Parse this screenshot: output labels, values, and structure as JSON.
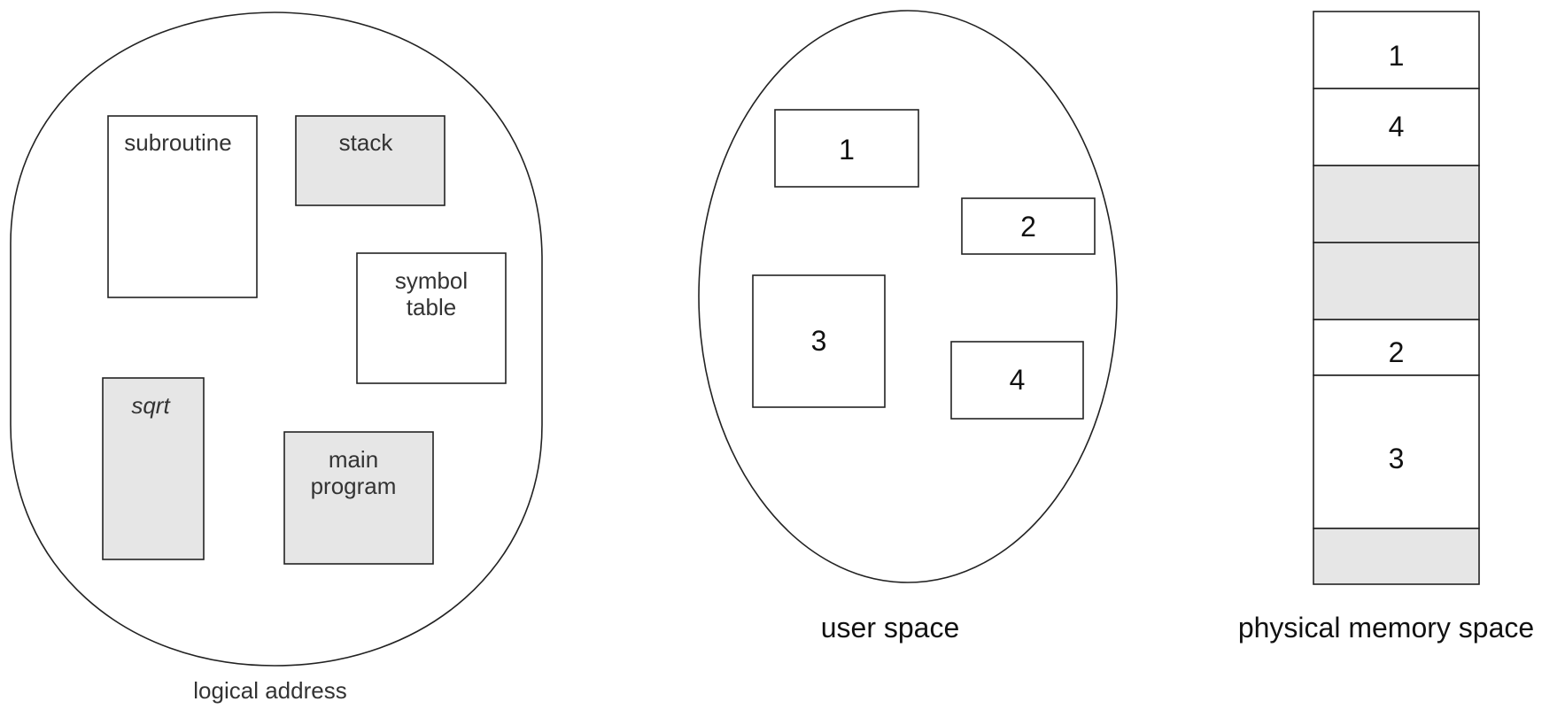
{
  "logical": {
    "caption": "logical address",
    "segments": [
      {
        "id": "subroutine",
        "label": "subroutine",
        "shaded": false
      },
      {
        "id": "stack",
        "label": "stack",
        "shaded": true
      },
      {
        "id": "symbol-table",
        "label": "symbol\ntable",
        "shaded": false
      },
      {
        "id": "sqrt",
        "label": "sqrt",
        "shaded": true
      },
      {
        "id": "main-program",
        "label": "main\nprogram",
        "shaded": true
      }
    ]
  },
  "user": {
    "caption": "user space",
    "segments": [
      "1",
      "2",
      "3",
      "4"
    ]
  },
  "physical": {
    "caption": "physical memory space",
    "blocks": [
      {
        "label": "1",
        "shaded": false
      },
      {
        "label": "4",
        "shaded": false
      },
      {
        "label": "",
        "shaded": true
      },
      {
        "label": "",
        "shaded": true
      },
      {
        "label": "2",
        "shaded": false
      },
      {
        "label": "3",
        "shaded": false
      },
      {
        "label": "",
        "shaded": true
      }
    ]
  },
  "colors": {
    "shade": "#e6e6e6",
    "stroke": "#222222"
  }
}
